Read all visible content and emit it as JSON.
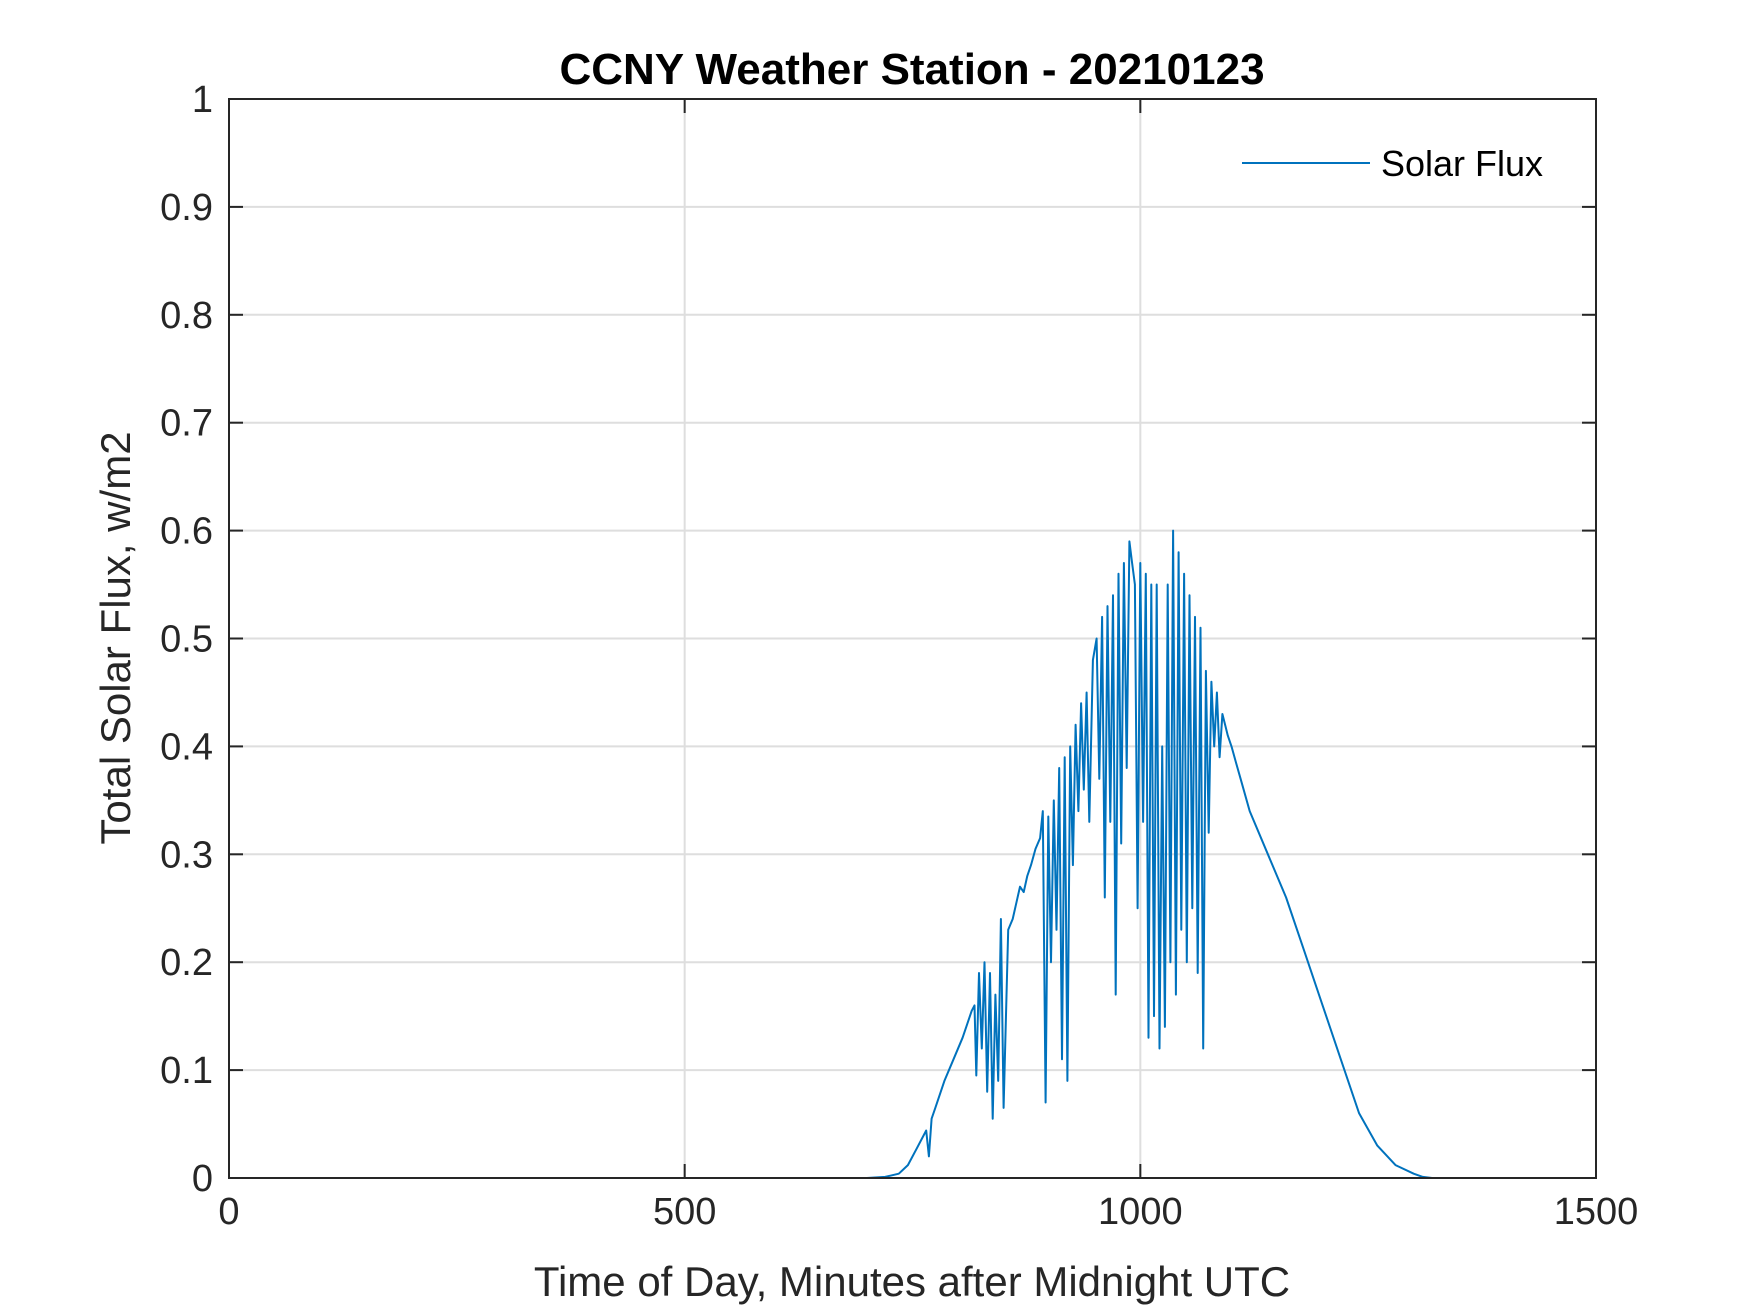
{
  "chart_data": {
    "type": "line",
    "title": "CCNY Weather Station - 20210123",
    "xlabel": "Time of Day, Minutes after Midnight UTC",
    "ylabel": "Total Solar Flux, w/m2",
    "xlim": [
      0,
      1500
    ],
    "ylim": [
      0,
      1
    ],
    "xticks": [
      0,
      500,
      1000,
      1500
    ],
    "xtick_labels": [
      "0",
      "500",
      "1000",
      "1500"
    ],
    "yticks": [
      0,
      0.1,
      0.2,
      0.3,
      0.4,
      0.5,
      0.6,
      0.7,
      0.8,
      0.9,
      1
    ],
    "ytick_labels": [
      "0",
      "0.1",
      "0.2",
      "0.3",
      "0.4",
      "0.5",
      "0.6",
      "0.7",
      "0.8",
      "0.9",
      "1"
    ],
    "grid": true,
    "legend_position": "top-right",
    "series": [
      {
        "name": "Solar Flux",
        "color": "#0072BD",
        "x": [
          0,
          700,
          720,
          735,
          745,
          755,
          765,
          768,
          771,
          775,
          785,
          795,
          805,
          815,
          818,
          820,
          823,
          826,
          829,
          832,
          835,
          838,
          841,
          844,
          847,
          850,
          855,
          860,
          868,
          872,
          876,
          880,
          885,
          890,
          893,
          896,
          899,
          902,
          905,
          908,
          911,
          914,
          917,
          920,
          923,
          926,
          929,
          932,
          935,
          938,
          941,
          944,
          948,
          952,
          955,
          958,
          961,
          964,
          967,
          970,
          973,
          976,
          979,
          982,
          985,
          988,
          991,
          994,
          997,
          1000,
          1003,
          1006,
          1009,
          1012,
          1015,
          1018,
          1021,
          1024,
          1027,
          1030,
          1033,
          1036,
          1039,
          1042,
          1045,
          1048,
          1051,
          1054,
          1057,
          1060,
          1063,
          1066,
          1069,
          1072,
          1075,
          1078,
          1081,
          1084,
          1087,
          1090,
          1093,
          1096,
          1100,
          1105,
          1110,
          1120,
          1140,
          1160,
          1180,
          1200,
          1220,
          1240,
          1260,
          1280,
          1300,
          1310,
          1320,
          1330,
          1340,
          1350,
          1360,
          1450
        ],
        "y": [
          0,
          0,
          0.001,
          0.004,
          0.012,
          0.028,
          0.044,
          0.02,
          0.055,
          0.065,
          0.09,
          0.11,
          0.13,
          0.155,
          0.16,
          0.095,
          0.19,
          0.12,
          0.2,
          0.08,
          0.19,
          0.055,
          0.17,
          0.09,
          0.24,
          0.065,
          0.23,
          0.24,
          0.27,
          0.265,
          0.28,
          0.29,
          0.305,
          0.315,
          0.34,
          0.07,
          0.335,
          0.2,
          0.35,
          0.23,
          0.38,
          0.11,
          0.39,
          0.09,
          0.4,
          0.29,
          0.42,
          0.34,
          0.44,
          0.36,
          0.45,
          0.33,
          0.48,
          0.5,
          0.37,
          0.52,
          0.26,
          0.53,
          0.33,
          0.54,
          0.17,
          0.56,
          0.31,
          0.57,
          0.38,
          0.59,
          0.57,
          0.55,
          0.25,
          0.57,
          0.33,
          0.56,
          0.13,
          0.55,
          0.15,
          0.55,
          0.12,
          0.4,
          0.14,
          0.55,
          0.2,
          0.6,
          0.17,
          0.58,
          0.23,
          0.56,
          0.2,
          0.54,
          0.25,
          0.52,
          0.19,
          0.51,
          0.12,
          0.47,
          0.32,
          0.46,
          0.4,
          0.45,
          0.39,
          0.43,
          0.42,
          0.41,
          0.4,
          0.385,
          0.37,
          0.34,
          0.3,
          0.26,
          0.21,
          0.16,
          0.11,
          0.06,
          0.03,
          0.012,
          0.004,
          0.001,
          0,
          0,
          0,
          0,
          0,
          0
        ]
      }
    ]
  }
}
